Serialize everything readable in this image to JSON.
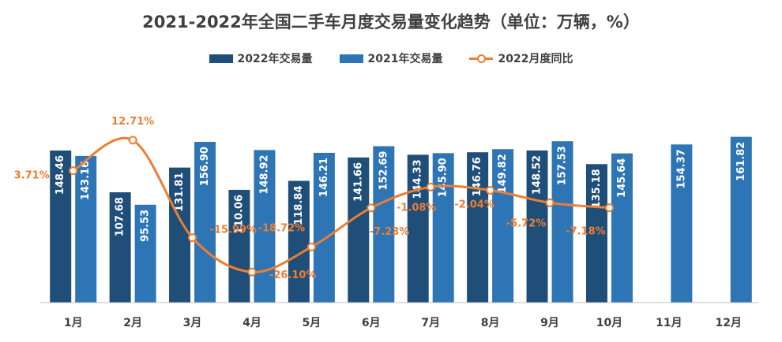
{
  "chart_data": {
    "type": "bar",
    "title": "2021-2022年全国二手车月度交易量变化趋势（单位：万辆，%）",
    "categories": [
      "1月",
      "2月",
      "3月",
      "4月",
      "5月",
      "6月",
      "7月",
      "8月",
      "9月",
      "10月",
      "11月",
      "12月"
    ],
    "series": [
      {
        "name": "2022年交易量",
        "type": "bar",
        "color": "#1F4E79",
        "values": [
          148.46,
          107.68,
          131.81,
          110.06,
          118.84,
          141.66,
          144.33,
          146.76,
          148.52,
          135.18,
          null,
          null
        ],
        "labels": [
          "148.46",
          "107.68",
          "131.81",
          "110.06",
          "118.84",
          "141.66",
          "144.33",
          "146.76",
          "148.52",
          "135.18",
          "",
          ""
        ]
      },
      {
        "name": "2021年交易量",
        "type": "bar",
        "color": "#2E75B6",
        "values": [
          143.16,
          95.53,
          156.9,
          148.92,
          146.21,
          152.69,
          145.9,
          149.82,
          157.53,
          145.64,
          154.37,
          161.82
        ],
        "labels": [
          "143.16",
          "95.53",
          "156.90",
          "148.92",
          "146.21",
          "152.69",
          "145.90",
          "149.82",
          "157.53",
          "145.64",
          "154.37",
          "161.82"
        ]
      },
      {
        "name": "2022月度同比",
        "type": "line",
        "color": "#ED7D31",
        "axis": "secondary",
        "values": [
          3.71,
          12.71,
          -15.99,
          -26.1,
          -18.72,
          -7.23,
          -1.08,
          -2.04,
          -5.72,
          -7.18,
          null,
          null
        ],
        "labels": [
          "3.71%",
          "12.71%",
          "-15.99%",
          "-26.10%",
          "-18.72%",
          "-7.23%",
          "-1.08%",
          "-2.04%",
          "-5.72%",
          "-7.18%",
          "",
          ""
        ]
      }
    ],
    "ylim": [
      0,
      180
    ],
    "y2lim": [
      -30,
      15
    ],
    "legend": "top-center",
    "grid": false
  }
}
